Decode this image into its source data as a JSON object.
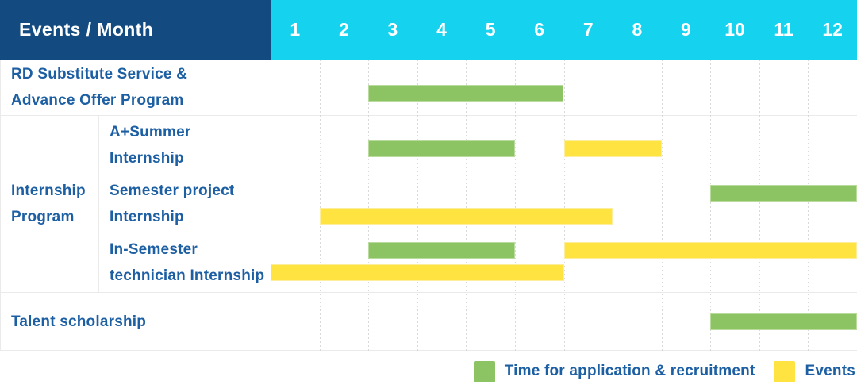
{
  "header": {
    "title": "Events / Month"
  },
  "colors": {
    "header_bg": "#134B80",
    "months_bg": "#15D2EF",
    "label_text": "#1D5FA3",
    "application_green": "#8CC464",
    "events_yellow": "#FFE340",
    "grid_line": "#EAEAEA",
    "dashed_line": "#D9D9D9"
  },
  "chart_data": {
    "type": "gantt",
    "title": "Events / Month",
    "months": [
      "1",
      "2",
      "3",
      "4",
      "5",
      "6",
      "7",
      "8",
      "9",
      "10",
      "11",
      "12"
    ],
    "x_range": [
      1,
      12
    ],
    "grid": "dashed-vertical-month-lines",
    "legend_position": "bottom-right",
    "legend": [
      {
        "key": "application",
        "label": "Time for application & recruitment",
        "color": "#8CC464"
      },
      {
        "key": "events",
        "label": "Events",
        "color": "#FFE340"
      }
    ],
    "group": {
      "id": "internship-program",
      "label_lines": [
        "Internship",
        "Program"
      ],
      "row_ids": [
        "a-plus-summer-internship",
        "semester-project-internship",
        "in-semester-technician-internship"
      ]
    },
    "rows": [
      {
        "id": "rd-substitute-advance-offer",
        "group": null,
        "label_lines": [
          "RD Substitute Service &",
          "Advance Offer Program"
        ],
        "bars": [
          {
            "series": "application",
            "start_month": 3,
            "end_month": 6,
            "lane": "single"
          }
        ]
      },
      {
        "id": "a-plus-summer-internship",
        "group": "internship-program",
        "label_lines": [
          "A+Summer",
          "Internship"
        ],
        "bars": [
          {
            "series": "application",
            "start_month": 3,
            "end_month": 5,
            "lane": "single"
          },
          {
            "series": "events",
            "start_month": 7,
            "end_month": 8,
            "lane": "single"
          }
        ]
      },
      {
        "id": "semester-project-internship",
        "group": "internship-program",
        "label_lines": [
          "Semester project",
          "Internship"
        ],
        "bars": [
          {
            "series": "application",
            "start_month": 10,
            "end_month": 12,
            "lane": "top"
          },
          {
            "series": "events",
            "start_month": 2,
            "end_month": 7,
            "lane": "bottom"
          }
        ]
      },
      {
        "id": "in-semester-technician-internship",
        "group": "internship-program",
        "label_lines": [
          "In-Semester",
          "technician Internship"
        ],
        "bars": [
          {
            "series": "application",
            "start_month": 3,
            "end_month": 5,
            "lane": "top"
          },
          {
            "series": "events",
            "start_month": 7,
            "end_month": 12,
            "lane": "top"
          },
          {
            "series": "events",
            "start_month": 1,
            "end_month": 6,
            "lane": "bottom"
          }
        ]
      },
      {
        "id": "talent-scholarship",
        "group": null,
        "label_lines": [
          "Talent scholarship"
        ],
        "bars": [
          {
            "series": "application",
            "start_month": 10,
            "end_month": 12,
            "lane": "single"
          }
        ]
      }
    ]
  }
}
